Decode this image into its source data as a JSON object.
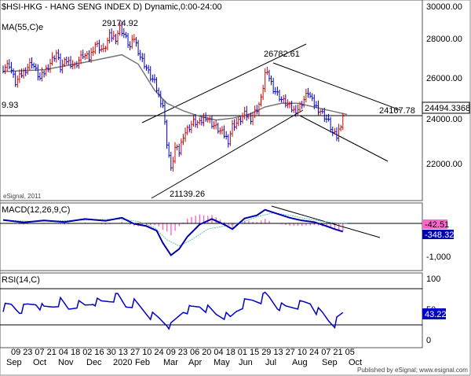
{
  "chart_data": [
    {
      "id": "price",
      "type": "line",
      "title": "$HSI-HKG - HANG SENG INDEX D) Dynamic,0:00-24:00",
      "indicator_label": "MA(55,C)e",
      "y_ticks": [
        "30000.00",
        "28000.00",
        "26000.00",
        "24000.00",
        "22000.00"
      ],
      "ylim": [
        20600,
        30300
      ],
      "last_price": "24494.3368",
      "horizontal_level": "24167.78",
      "left_cut_label": "9.93",
      "annotations": [
        "29174.92",
        "26782.61",
        "21139.26"
      ],
      "watermark": "eSignal, 2011",
      "colors": {
        "up": "#cc0000",
        "down": "#0000cc",
        "ma": "#777777",
        "lines": "#000000"
      },
      "close_points": [
        [
          0,
          27000
        ],
        [
          3,
          27180
        ],
        [
          6,
          26200
        ],
        [
          10,
          26800
        ],
        [
          14,
          27300
        ],
        [
          18,
          26400
        ],
        [
          22,
          27100
        ],
        [
          26,
          27800
        ],
        [
          28,
          27000
        ],
        [
          31,
          27400
        ],
        [
          35,
          27100
        ],
        [
          39,
          27700
        ],
        [
          42,
          27500
        ],
        [
          45,
          28300
        ],
        [
          49,
          27900
        ],
        [
          52,
          28700
        ],
        [
          55,
          28600
        ],
        [
          57,
          29174
        ],
        [
          59,
          28800
        ],
        [
          62,
          28100
        ],
        [
          64,
          28600
        ],
        [
          67,
          27600
        ],
        [
          70,
          27000
        ],
        [
          72,
          26500
        ],
        [
          74,
          26200
        ],
        [
          76,
          25500
        ],
        [
          78,
          25000
        ],
        [
          80,
          23000
        ],
        [
          81,
          22300
        ],
        [
          82,
          21500
        ],
        [
          84,
          22700
        ],
        [
          86,
          22500
        ],
        [
          88,
          23400
        ],
        [
          90,
          23700
        ],
        [
          93,
          24100
        ],
        [
          96,
          24000
        ],
        [
          99,
          24400
        ],
        [
          102,
          24000
        ],
        [
          105,
          23700
        ],
        [
          108,
          23400
        ],
        [
          110,
          23100
        ],
        [
          112,
          23900
        ],
        [
          115,
          24100
        ],
        [
          118,
          24500
        ],
        [
          121,
          24300
        ],
        [
          124,
          24800
        ],
        [
          126,
          25300
        ],
        [
          128,
          26700
        ],
        [
          130,
          26500
        ],
        [
          132,
          25900
        ],
        [
          134,
          25600
        ],
        [
          136,
          25300
        ],
        [
          139,
          25000
        ],
        [
          142,
          24700
        ],
        [
          144,
          24800
        ],
        [
          147,
          25300
        ],
        [
          149,
          25700
        ],
        [
          151,
          25200
        ],
        [
          153,
          24900
        ],
        [
          155,
          24700
        ],
        [
          157,
          24400
        ],
        [
          159,
          24100
        ],
        [
          161,
          23500
        ],
        [
          163,
          23300
        ],
        [
          165,
          24000
        ],
        [
          166,
          24450
        ]
      ],
      "ma_points": [
        [
          0,
          26800
        ],
        [
          20,
          26900
        ],
        [
          40,
          27300
        ],
        [
          58,
          27700
        ],
        [
          66,
          27200
        ],
        [
          74,
          25800
        ],
        [
          80,
          25100
        ],
        [
          88,
          24700
        ],
        [
          96,
          24400
        ],
        [
          104,
          24200
        ],
        [
          112,
          24300
        ],
        [
          120,
          24500
        ],
        [
          128,
          24900
        ],
        [
          136,
          25100
        ],
        [
          144,
          25100
        ],
        [
          152,
          24900
        ],
        [
          160,
          24700
        ],
        [
          168,
          24500
        ]
      ]
    },
    {
      "id": "macd",
      "type": "line",
      "title": "MACD(12,26,9,C)",
      "y_tick": "-1,000",
      "ylim": [
        -1500,
        500
      ],
      "macd_value": "-42.51",
      "signal_value": "-348.32",
      "colors": {
        "macd": "#0000aa",
        "signal": "#66bbbb",
        "hist": "#ff66cc"
      },
      "macd_points": [
        [
          0,
          50
        ],
        [
          10,
          -30
        ],
        [
          20,
          30
        ],
        [
          30,
          -20
        ],
        [
          40,
          80
        ],
        [
          50,
          20
        ],
        [
          58,
          120
        ],
        [
          64,
          -80
        ],
        [
          70,
          -150
        ],
        [
          75,
          -300
        ],
        [
          78,
          -700
        ],
        [
          82,
          -1100
        ],
        [
          86,
          -900
        ],
        [
          90,
          -500
        ],
        [
          96,
          -100
        ],
        [
          102,
          80
        ],
        [
          108,
          -100
        ],
        [
          112,
          -250
        ],
        [
          118,
          100
        ],
        [
          124,
          200
        ],
        [
          128,
          380
        ],
        [
          134,
          250
        ],
        [
          140,
          120
        ],
        [
          146,
          30
        ],
        [
          152,
          -20
        ],
        [
          158,
          -150
        ],
        [
          162,
          -250
        ],
        [
          166,
          -330
        ]
      ],
      "signal_points": [
        [
          0,
          40
        ],
        [
          14,
          0
        ],
        [
          28,
          20
        ],
        [
          42,
          50
        ],
        [
          56,
          80
        ],
        [
          66,
          0
        ],
        [
          74,
          -200
        ],
        [
          80,
          -600
        ],
        [
          86,
          -800
        ],
        [
          92,
          -600
        ],
        [
          100,
          -250
        ],
        [
          108,
          -150
        ],
        [
          116,
          -50
        ],
        [
          124,
          150
        ],
        [
          132,
          280
        ],
        [
          140,
          200
        ],
        [
          148,
          90
        ],
        [
          156,
          0
        ],
        [
          164,
          -60
        ],
        [
          168,
          -60
        ]
      ]
    },
    {
      "id": "rsi",
      "type": "line",
      "title": "RSI(14,C)",
      "y_ticks": [
        "100",
        "50",
        "0"
      ],
      "ylim": [
        0,
        100
      ],
      "current_value": "43.22",
      "colors": {
        "rsi": "#0000cc"
      },
      "points": [
        [
          0,
          52
        ],
        [
          4,
          56
        ],
        [
          8,
          48
        ],
        [
          12,
          55
        ],
        [
          16,
          60
        ],
        [
          20,
          50
        ],
        [
          24,
          55
        ],
        [
          28,
          62
        ],
        [
          32,
          50
        ],
        [
          36,
          58
        ],
        [
          40,
          55
        ],
        [
          44,
          62
        ],
        [
          48,
          60
        ],
        [
          52,
          65
        ],
        [
          56,
          70
        ],
        [
          60,
          55
        ],
        [
          64,
          60
        ],
        [
          68,
          50
        ],
        [
          72,
          40
        ],
        [
          76,
          35
        ],
        [
          80,
          28
        ],
        [
          82,
          22
        ],
        [
          85,
          35
        ],
        [
          88,
          48
        ],
        [
          92,
          50
        ],
        [
          96,
          55
        ],
        [
          100,
          50
        ],
        [
          104,
          42
        ],
        [
          108,
          40
        ],
        [
          111,
          35
        ],
        [
          114,
          48
        ],
        [
          118,
          60
        ],
        [
          122,
          64
        ],
        [
          126,
          65
        ],
        [
          128,
          72
        ],
        [
          130,
          68
        ],
        [
          134,
          55
        ],
        [
          138,
          52
        ],
        [
          142,
          55
        ],
        [
          146,
          58
        ],
        [
          150,
          60
        ],
        [
          153,
          48
        ],
        [
          156,
          42
        ],
        [
          159,
          33
        ],
        [
          162,
          27
        ],
        [
          164,
          35
        ],
        [
          166,
          43
        ]
      ]
    }
  ],
  "x_axis": {
    "day_labels": [
      "09",
      "23",
      "07",
      "21",
      "04",
      "18",
      "02",
      "16",
      "30",
      "13",
      "27",
      "10",
      "24",
      "09",
      "23",
      "06",
      "20",
      "04",
      "18",
      "01",
      "15",
      "29",
      "13",
      "27",
      "10",
      "24",
      "07",
      "21",
      "05"
    ],
    "month_labels": [
      "Sep",
      "Oct",
      "Nov",
      "Dec",
      "2020",
      "Feb",
      "Mar",
      "Apr",
      "May",
      "Jun",
      "Jul",
      "Aug",
      "Sep",
      "Oct"
    ]
  },
  "footer": "Published by eSignal; www.esignal.com"
}
